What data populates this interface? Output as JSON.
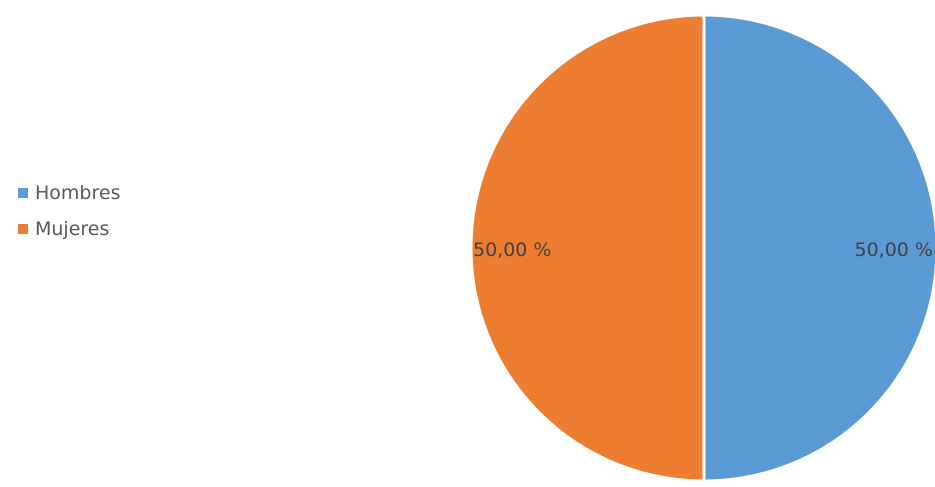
{
  "chart_data": {
    "type": "pie",
    "title": "",
    "categories": [
      "Hombres",
      "Mujeres"
    ],
    "values": [
      50.0,
      50.0
    ],
    "value_labels": [
      "50,00 %",
      "50,00 %"
    ],
    "colors": [
      "#5b9bd5",
      "#ed7d31"
    ],
    "legend_position": "left",
    "label_color": "#404040"
  },
  "legend": {
    "items": [
      {
        "label": "Hombres",
        "color": "#5b9bd5"
      },
      {
        "label": "Mujeres",
        "color": "#ed7d31"
      }
    ]
  }
}
